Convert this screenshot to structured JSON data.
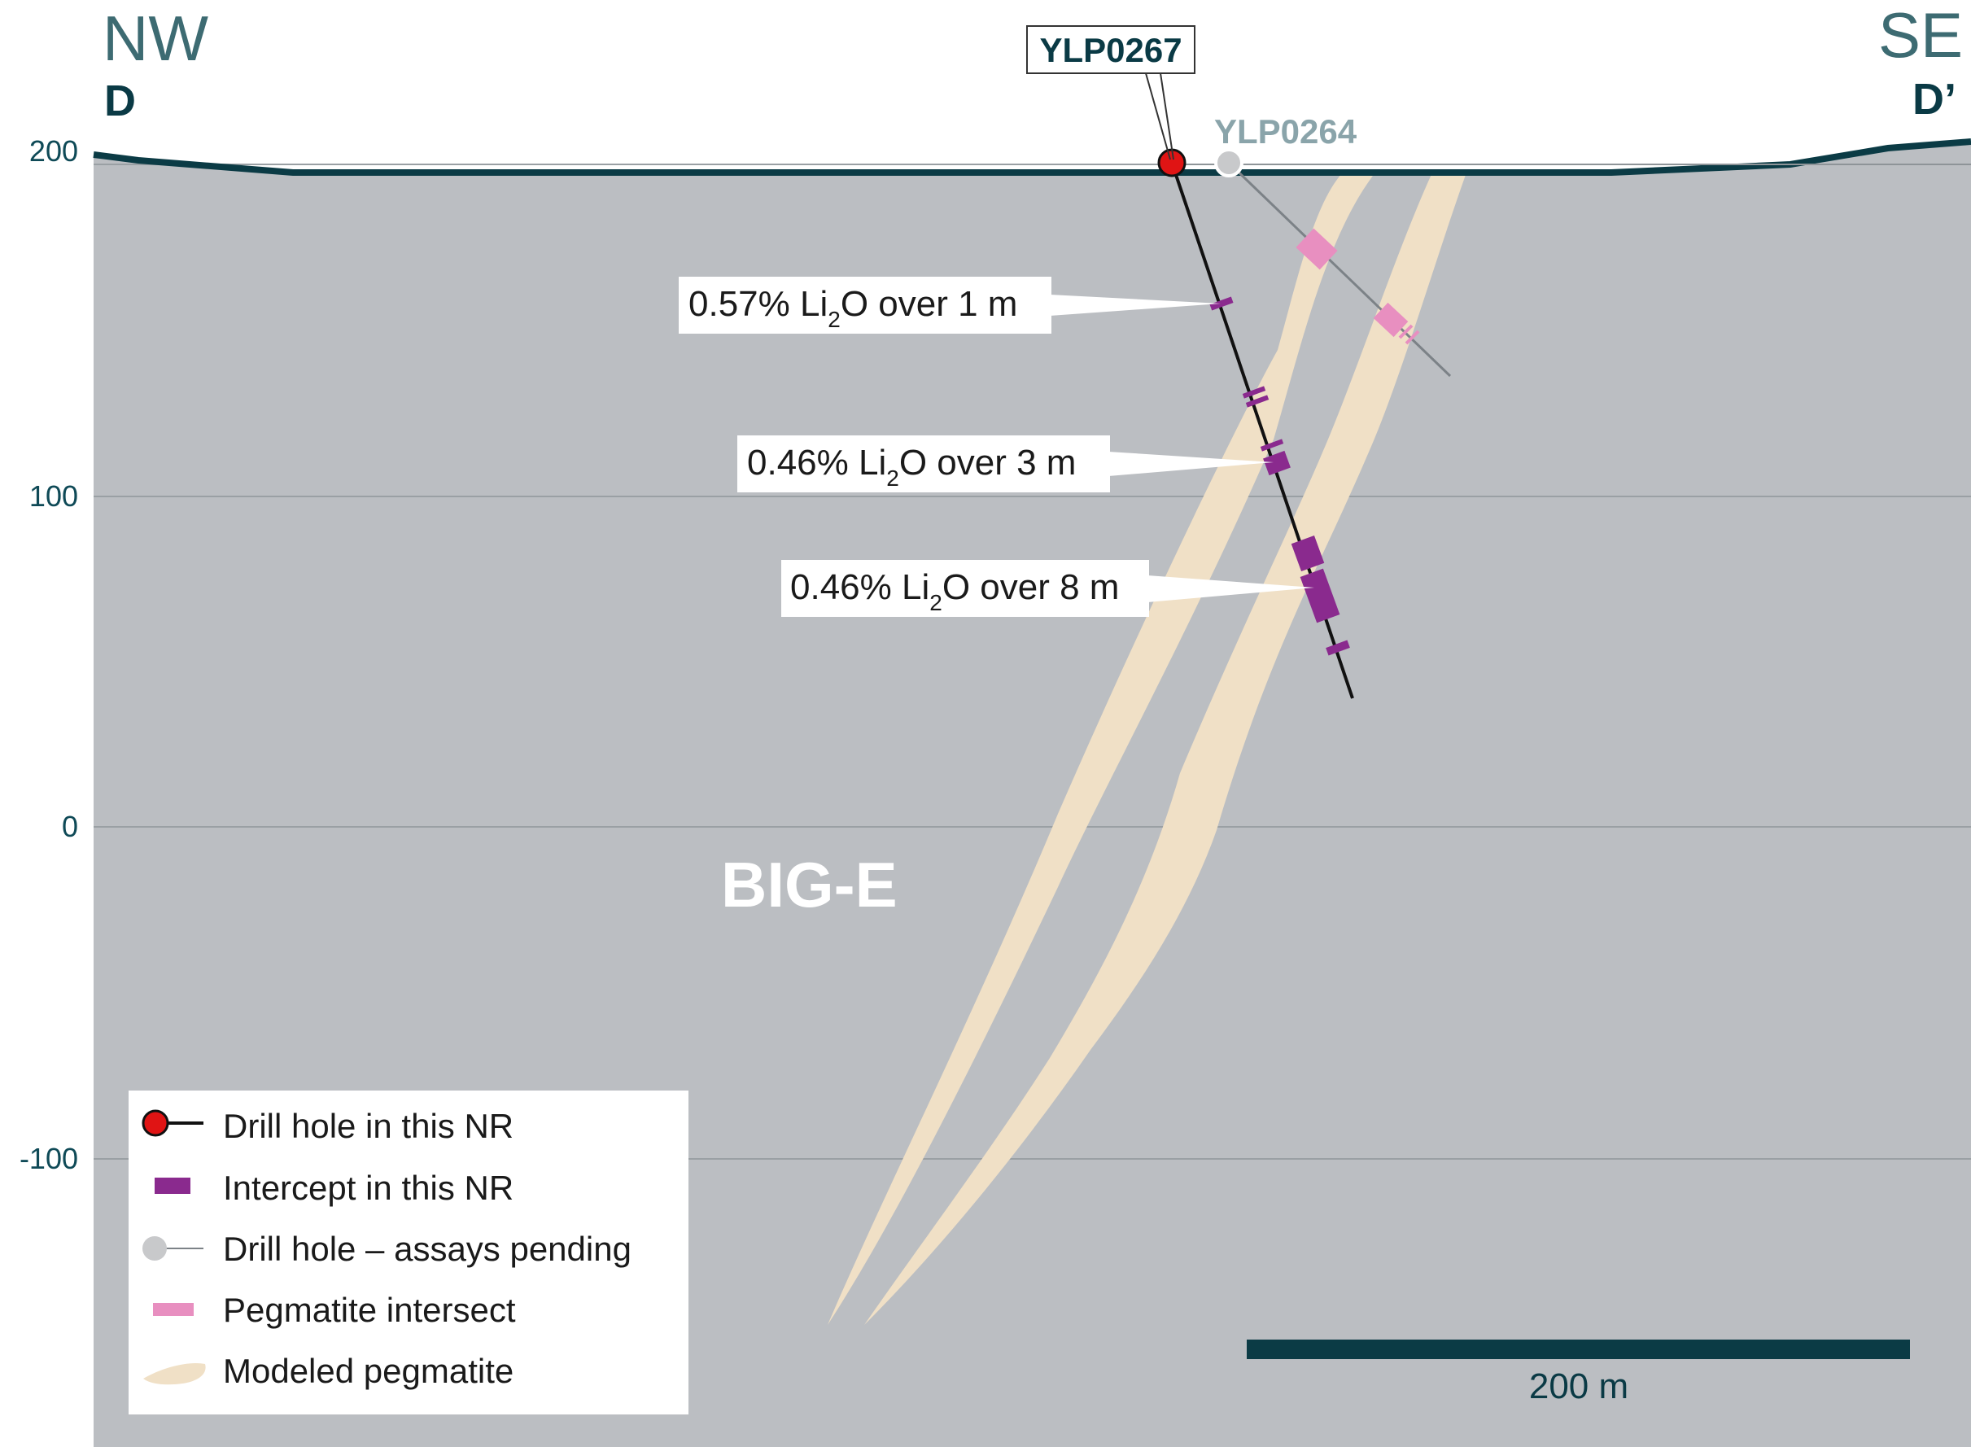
{
  "directions": {
    "left": {
      "bearing": "NW",
      "label": "D"
    },
    "right": {
      "bearing": "SE",
      "label": "D’"
    }
  },
  "elevation_labels": [
    "200",
    "100",
    "0",
    "-100"
  ],
  "zone_label": "BIG-E",
  "drill_holes": {
    "main": {
      "id": "YLP0267"
    },
    "pending": {
      "id": "YLP0264"
    }
  },
  "intercepts": [
    {
      "prefix": "0.57% Li",
      "sub": "2",
      "suffix": "O over 1 m"
    },
    {
      "prefix": "0.46% Li",
      "sub": "2",
      "suffix": "O over 3 m"
    },
    {
      "prefix": "0.46% Li",
      "sub": "2",
      "suffix": "O over 8 m"
    }
  ],
  "legend": [
    {
      "label": "Drill hole in this NR",
      "icon": "red-drill-hole-icon"
    },
    {
      "label": "Intercept in this NR",
      "icon": "purple-intercept-icon"
    },
    {
      "label": "Drill hole – assays pending",
      "icon": "grey-drill-hole-icon"
    },
    {
      "label": "Pegmatite intersect",
      "icon": "pink-intersect-icon"
    },
    {
      "label": "Modeled pegmatite",
      "icon": "pegmatite-swatch-icon"
    }
  ],
  "scale_bar": {
    "label": "200 m"
  },
  "colors": {
    "ground": "#bbbec2",
    "surface_line": "#0b3b45",
    "pegmatite": "#f0e0c6",
    "intercept": "#8a2a8e",
    "pegmatite_intersect": "#e88fc0",
    "drill_hole_main": "#e01414",
    "drill_hole_pending": "#c8c9cb",
    "gridline": "#9aa0a4"
  }
}
